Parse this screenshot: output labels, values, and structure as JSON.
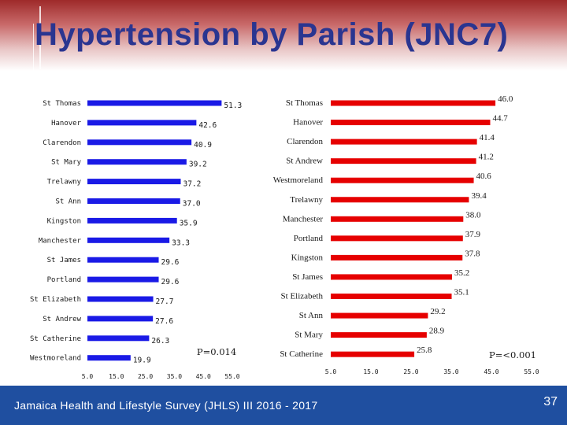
{
  "slide": {
    "title": "Hypertension by Parish (JNC7)",
    "footer": "Jamaica Health and Lifestyle Survey (JHLS) III 2016 - 2017",
    "page_number": "37"
  },
  "colors": {
    "left_bar": "#1a1ae6",
    "right_bar": "#e60000",
    "footer": "#1f4fa0",
    "title": "#2a3590"
  },
  "chart_data": [
    {
      "type": "bar",
      "orientation": "horizontal",
      "categories": [
        "St Thomas",
        "Hanover",
        "Clarendon",
        "St Mary",
        "Trelawny",
        "St Ann",
        "Kingston",
        "Manchester",
        "St James",
        "Portland",
        "St Elizabeth",
        "St Andrew",
        "St Catherine",
        "Westmoreland"
      ],
      "values": [
        51.3,
        42.6,
        40.9,
        39.2,
        37.2,
        37.0,
        35.9,
        33.3,
        29.6,
        29.6,
        27.7,
        27.6,
        26.3,
        19.9
      ],
      "value_labels": [
        "51.3",
        "42.6",
        "40.9",
        "39.2",
        "37.2",
        "37.0",
        "35.9",
        "33.3",
        "29.6",
        "29.6",
        "27.7",
        "27.6",
        "26.3",
        "19.9"
      ],
      "xlim": [
        5,
        55
      ],
      "x_ticks": [
        "5.0",
        "15.0",
        "25.0",
        "35.0",
        "45.0",
        "55.0"
      ],
      "annotation": "P=0.014"
    },
    {
      "type": "bar",
      "orientation": "horizontal",
      "categories": [
        "St Thomas",
        "Hanover",
        "Clarendon",
        "St Andrew",
        "Westmoreland",
        "Trelawny",
        "Manchester",
        "Portland",
        "Kingston",
        "St James",
        "St Elizabeth",
        "St Ann",
        "St Mary",
        "St Catherine"
      ],
      "values": [
        46.0,
        44.7,
        41.4,
        41.2,
        40.6,
        39.4,
        38.0,
        37.9,
        37.8,
        35.2,
        35.1,
        29.2,
        28.9,
        25.8
      ],
      "value_labels": [
        "46.0",
        "44.7",
        "41.4",
        "41.2",
        "40.6",
        "39.4",
        "38.0",
        "37.9",
        "37.8",
        "35.2",
        "35.1",
        "29.2",
        "28.9",
        "25.8"
      ],
      "xlim": [
        5,
        55
      ],
      "x_ticks": [
        "5.0",
        "15.0",
        "25.0",
        "35.0",
        "45.0",
        "55.0"
      ],
      "annotation": "P=<0.001"
    }
  ]
}
